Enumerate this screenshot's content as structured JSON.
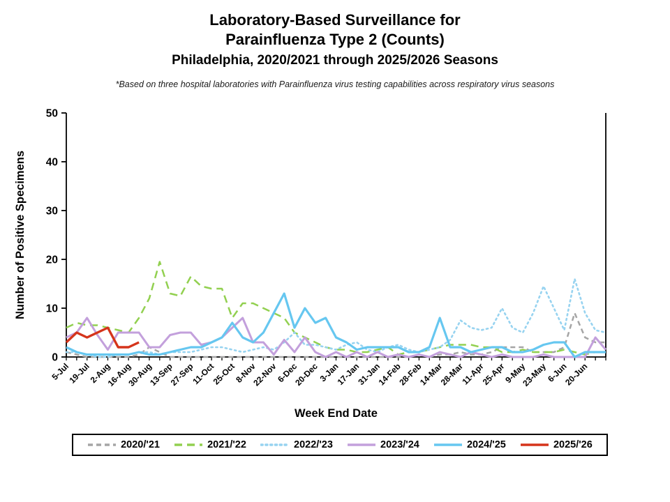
{
  "title": {
    "line1": "Laboratory-Based Surveillance for",
    "line2": "Parainfluenza Type 2 (Counts)",
    "line3": "Philadelphia, 2020/2021 through 2025/2026 Seasons"
  },
  "subtitle": "*Based on three hospital laboratories with Parainfluenza virus testing capabilities across respiratory virus seasons",
  "chart_data": {
    "type": "line",
    "x_axis_label": "Week End Date",
    "y_axis_label": "Number of Positive Specimens",
    "ylim": [
      0,
      50
    ],
    "y_ticks": [
      0,
      10,
      20,
      30,
      40,
      50
    ],
    "weeks_total": 53,
    "x_tick_every_week": true,
    "x_labels_every_2_weeks": [
      "5-Jul",
      "19-Jul",
      "2-Aug",
      "16-Aug",
      "30-Aug",
      "13-Sep",
      "27-Sep",
      "11-Oct",
      "25-Oct",
      "8-Nov",
      "22-Nov",
      "6-Dec",
      "20-Dec",
      "3-Jan",
      "17-Jan",
      "31-Jan",
      "14-Feb",
      "28-Feb",
      "14-Mar",
      "28-Mar",
      "11-Apr",
      "25-Apr",
      "9-May",
      "23-May",
      "6-Jun",
      "20-Jun"
    ],
    "grid": false,
    "legend_position": "bottom",
    "series": [
      {
        "name": "2020/'21",
        "color": "#A5A5A5",
        "style": "dashed",
        "width": 2.5,
        "values": [
          1,
          0.5,
          0,
          0,
          0,
          0,
          0,
          0.5,
          2,
          1,
          0,
          0,
          0,
          0,
          0,
          0,
          0,
          0,
          0,
          0,
          0,
          0,
          0,
          0,
          0,
          0,
          0,
          0,
          0,
          0,
          0,
          0,
          0,
          0,
          0.5,
          0,
          0.5,
          0.5,
          1,
          0.5,
          0.5,
          1,
          2,
          2,
          2,
          1,
          1,
          1,
          2,
          9,
          4,
          3,
          3
        ]
      },
      {
        "name": "2021/'22",
        "color": "#92D050",
        "style": "dashed-long",
        "width": 2.5,
        "values": [
          6,
          7,
          6.5,
          6.5,
          6,
          5.5,
          5,
          8,
          12,
          19.5,
          13,
          12.5,
          16.5,
          14.5,
          14,
          14,
          8,
          11,
          11,
          10,
          9,
          8,
          5,
          4,
          3,
          2,
          1.5,
          1.5,
          1,
          1,
          1.5,
          2,
          0.5,
          1,
          1,
          1.5,
          2,
          2.5,
          2.5,
          2.5,
          2,
          2,
          1,
          1,
          1.5,
          1,
          1,
          1,
          1.5,
          1,
          0.5,
          1,
          1
        ]
      },
      {
        "name": "2022/'23",
        "color": "#97D3F0",
        "style": "dotted",
        "width": 2.6,
        "values": [
          1,
          1,
          0.5,
          0,
          0,
          0.5,
          0.5,
          1,
          1,
          0.5,
          1,
          1,
          1,
          1.5,
          2,
          2,
          1.5,
          1,
          1.5,
          2,
          1.5,
          3,
          5,
          2.5,
          2.5,
          2,
          1.5,
          2.5,
          3,
          1.5,
          1,
          2,
          2.5,
          1.5,
          1,
          1.5,
          2,
          3.5,
          7.5,
          6,
          5.5,
          6,
          10,
          6,
          5,
          9,
          14.5,
          10,
          5.5,
          16,
          9,
          5.5,
          5
        ]
      },
      {
        "name": "2023/'24",
        "color": "#C3A0DC",
        "style": "solid",
        "width": 3,
        "values": [
          4,
          5,
          8,
          4.5,
          1.5,
          5,
          5,
          5,
          2,
          2,
          4.5,
          5,
          5,
          2.5,
          3,
          4,
          6,
          8,
          3,
          3,
          0.5,
          3.5,
          1,
          4,
          1,
          0,
          1,
          0,
          1,
          0,
          1,
          0,
          0.5,
          0,
          0.5,
          0,
          1,
          0.5,
          0,
          1,
          0.5,
          0,
          0.5,
          0,
          0,
          0,
          0.5,
          0,
          0,
          0,
          0,
          4,
          1.5
        ]
      },
      {
        "name": "2024/'25",
        "color": "#66C7F0",
        "style": "solid",
        "width": 3.2,
        "values": [
          2,
          1,
          0.5,
          0.5,
          0.5,
          0.5,
          0.5,
          1,
          0.5,
          0.5,
          1,
          1.5,
          2,
          2,
          3,
          4,
          7,
          4,
          3,
          5,
          9,
          13,
          6,
          10,
          7,
          8,
          4,
          3,
          1.5,
          2,
          2,
          2,
          2,
          1,
          1,
          2,
          8,
          2,
          2,
          1,
          1.5,
          2,
          2,
          1,
          1,
          1.5,
          2.5,
          3,
          3,
          0,
          1,
          1,
          1
        ]
      },
      {
        "name": "2025/'26",
        "color": "#D5341B",
        "style": "solid",
        "width": 3.4,
        "values": [
          3,
          5,
          4,
          5,
          6,
          2,
          2,
          3
        ]
      }
    ]
  }
}
